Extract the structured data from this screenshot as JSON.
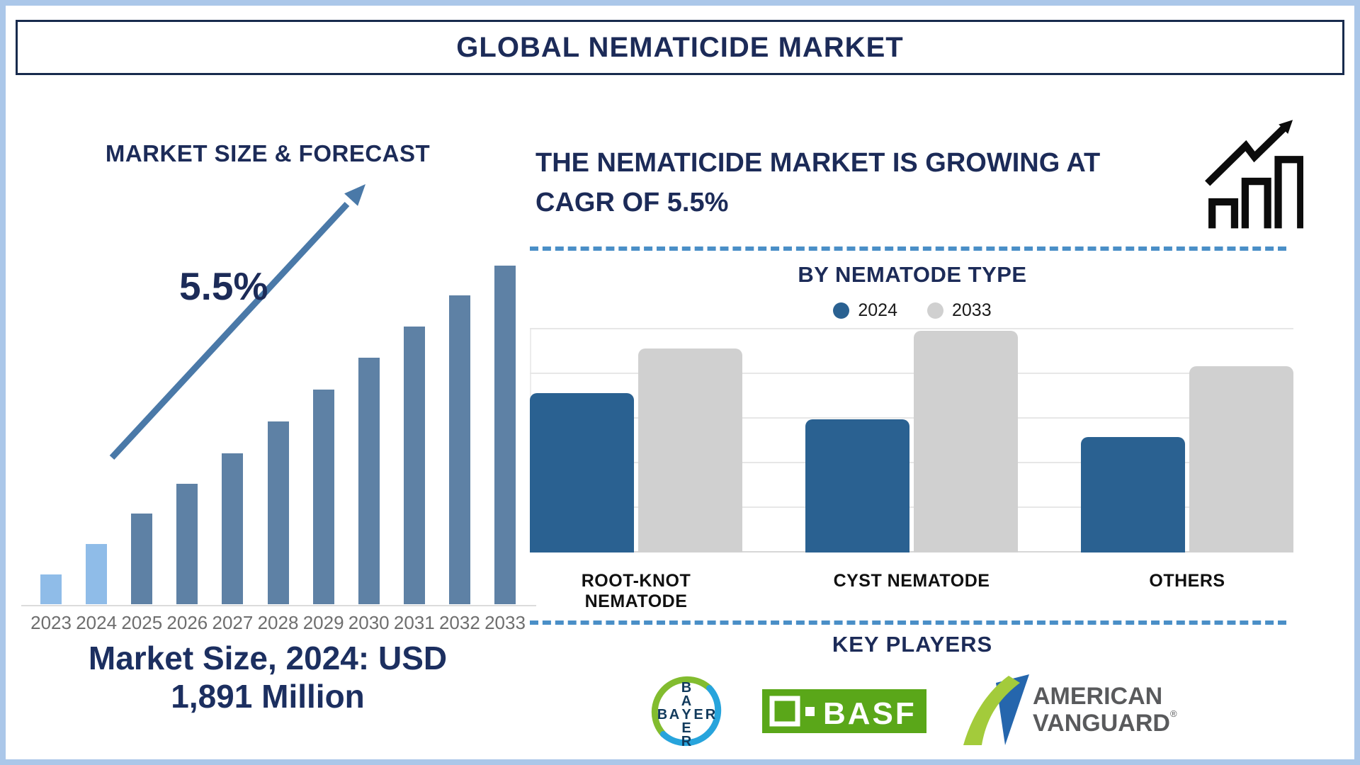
{
  "page": {
    "title": "GLOBAL NEMATICIDE MARKET"
  },
  "left_panel": {
    "heading": "MARKET SIZE & FORECAST",
    "cagr_label": "5.5%",
    "caption_line1": "Market Size, 2024: USD",
    "caption_line2": "1,891 Million"
  },
  "right_panel": {
    "heading": "THE NEMATICIDE MARKET IS GROWING AT\nCAGR OF 5.5%",
    "nematode_section_title": "BY NEMATODE TYPE",
    "key_players_title": "KEY PLAYERS",
    "key_players": [
      {
        "name": "Bayer",
        "word": "BAYER"
      },
      {
        "name": "BASF",
        "word": "BASF"
      },
      {
        "name": "American Vanguard",
        "line1": "AMERICAN",
        "line2": "VANGUARD",
        "reg": "®"
      }
    ]
  },
  "colors": {
    "navy_heading": "#1c2b58",
    "frame_blue": "#abc7e9",
    "dashed_divider": "#4a8fc7",
    "forecast_bar_highlight": "#8fbce8",
    "forecast_bar_default": "#5e81a5",
    "forecast_arrow": "#4a79a8",
    "series_2024_blue": "#2a6191",
    "series_2033_gray": "#d0d0d0",
    "year_label_gray": "#6e6e6e",
    "basf_green": "#5aa719",
    "bayer_letter_navy": "#113a5c",
    "bayer_ring_green": "#82bc2f",
    "bayer_ring_blue": "#27a4dc",
    "av_green": "#a3cb3b",
    "av_blue": "#2566ad",
    "av_text_gray": "#595a5c"
  },
  "chart_data": [
    {
      "type": "bar",
      "title": "MARKET SIZE & FORECAST",
      "categories": [
        "2023",
        "2024",
        "2025",
        "2026",
        "2027",
        "2028",
        "2029",
        "2030",
        "2031",
        "2032",
        "2033"
      ],
      "values": [
        42,
        85,
        128,
        170,
        213,
        258,
        303,
        348,
        392,
        436,
        478
      ],
      "values_note": "relative bar heights (source chart has no labeled y-axis)",
      "ylim": [
        0,
        500
      ],
      "xlabel": "",
      "ylabel": "",
      "grid": false,
      "annotation": "5.5%",
      "stated_fact": "Market Size, 2024: USD 1,891 Million",
      "highlight_years": [
        "2023",
        "2024"
      ],
      "bar_color_highlight": "#8fbce8",
      "bar_color_default": "#5e81a5"
    },
    {
      "type": "bar",
      "grouped": true,
      "title": "BY NEMATODE TYPE",
      "categories": [
        "ROOT-KNOT NEMATODE",
        "CYST NEMATODE",
        "OTHERS"
      ],
      "series": [
        {
          "name": "2024",
          "color": "#2a6191",
          "values": [
            72,
            60,
            52
          ]
        },
        {
          "name": "2033",
          "color": "#d0d0d0",
          "values": [
            92,
            100,
            84
          ]
        }
      ],
      "ylim": [
        0,
        100
      ],
      "values_note": "relative units (source chart has no labeled y-axis)",
      "grid": true,
      "legend_position": "top"
    }
  ]
}
